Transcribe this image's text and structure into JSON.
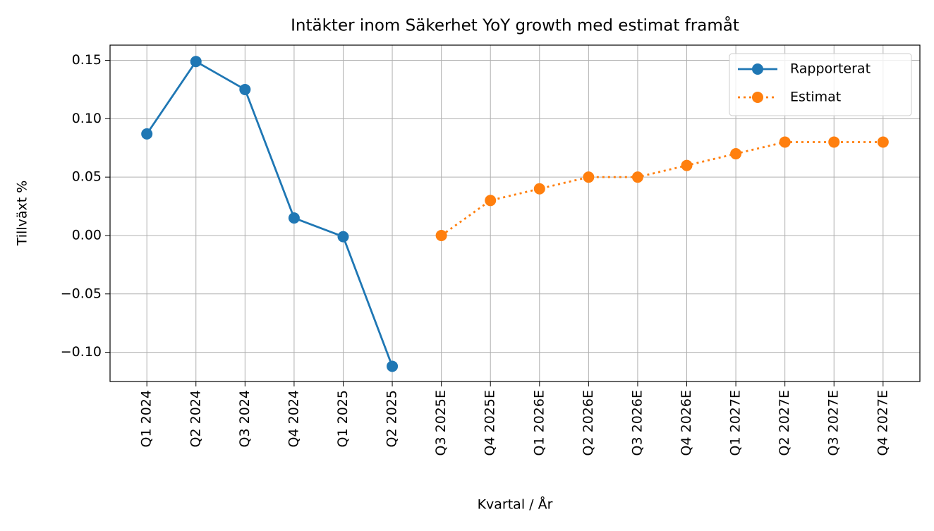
{
  "chart_data": {
    "type": "line",
    "title": "Intäkter inom Säkerhet YoY growth med estimat framåt",
    "xlabel": "Kvartal / År",
    "ylabel": "Tillväxt %",
    "categories": [
      "Q1 2024",
      "Q2 2024",
      "Q3 2024",
      "Q4 2024",
      "Q1 2025",
      "Q2 2025",
      "Q3 2025E",
      "Q4 2025E",
      "Q1 2026E",
      "Q2 2026E",
      "Q3 2026E",
      "Q4 2026E",
      "Q1 2027E",
      "Q2 2027E",
      "Q3 2027E",
      "Q4 2027E"
    ],
    "series": [
      {
        "name": "Rapporterat",
        "color": "#1f77b4",
        "linestyle": "solid",
        "values": [
          0.087,
          0.149,
          0.125,
          0.015,
          -0.001,
          -0.112,
          null,
          null,
          null,
          null,
          null,
          null,
          null,
          null,
          null,
          null
        ]
      },
      {
        "name": "Estimat",
        "color": "#ff7f0e",
        "linestyle": "dotted",
        "values": [
          null,
          null,
          null,
          null,
          null,
          null,
          0.0,
          0.03,
          0.04,
          0.05,
          0.05,
          0.06,
          0.07,
          0.08,
          0.08,
          0.08
        ]
      }
    ],
    "ylim": [
      -0.125,
      0.163
    ],
    "yticks": [
      {
        "value": -0.1,
        "label": "−0.10"
      },
      {
        "value": -0.05,
        "label": "−0.05"
      },
      {
        "value": 0,
        "label": "0.00"
      },
      {
        "value": 0.05,
        "label": "0.05"
      },
      {
        "value": 0.1,
        "label": "0.10"
      },
      {
        "value": 0.15,
        "label": "0.15"
      }
    ],
    "grid": true,
    "legend": "upper right"
  }
}
